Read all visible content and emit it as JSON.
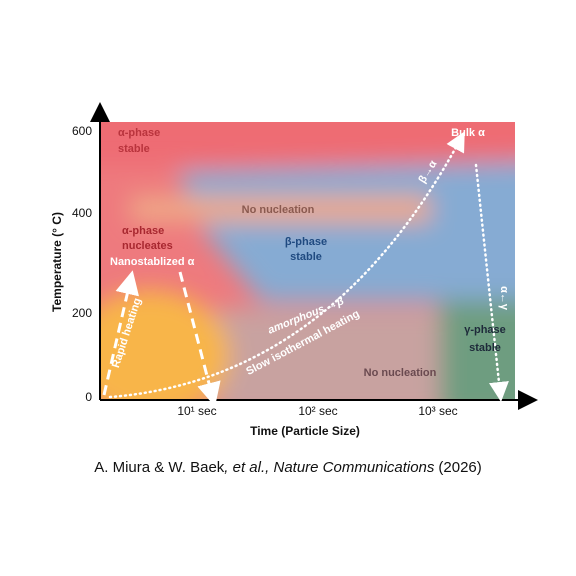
{
  "axes": {
    "y_label": "Temperature (° C)",
    "x_label": "Time (Particle Size)",
    "y_ticks": [
      "0",
      "200",
      "400",
      "600"
    ],
    "x_ticks": [
      "10¹ sec",
      "10² sec",
      "10³ sec"
    ]
  },
  "regions": [
    {
      "lines": [
        "α-phase",
        "stable"
      ]
    },
    {
      "lines": [
        "No nucleation"
      ]
    },
    {
      "lines": [
        "α-phase",
        "nucleates"
      ]
    },
    {
      "lines": [
        "Nanostablized α"
      ]
    },
    {
      "lines": [
        "β-phase",
        "stable"
      ]
    },
    {
      "lines": [
        "Bulk α"
      ]
    },
    {
      "lines": [
        "γ-phase",
        "stable"
      ]
    },
    {
      "lines": [
        "No nucleation"
      ]
    }
  ],
  "arrows": [
    "Rapid heating",
    "amorphous →β",
    "Slow isothermal heating",
    "β→α",
    "α←γ"
  ],
  "caption": {
    "authors": "A. Miura & W. Baek",
    "journal": ", et al., Nature Communications",
    "year": "(2026)"
  }
}
